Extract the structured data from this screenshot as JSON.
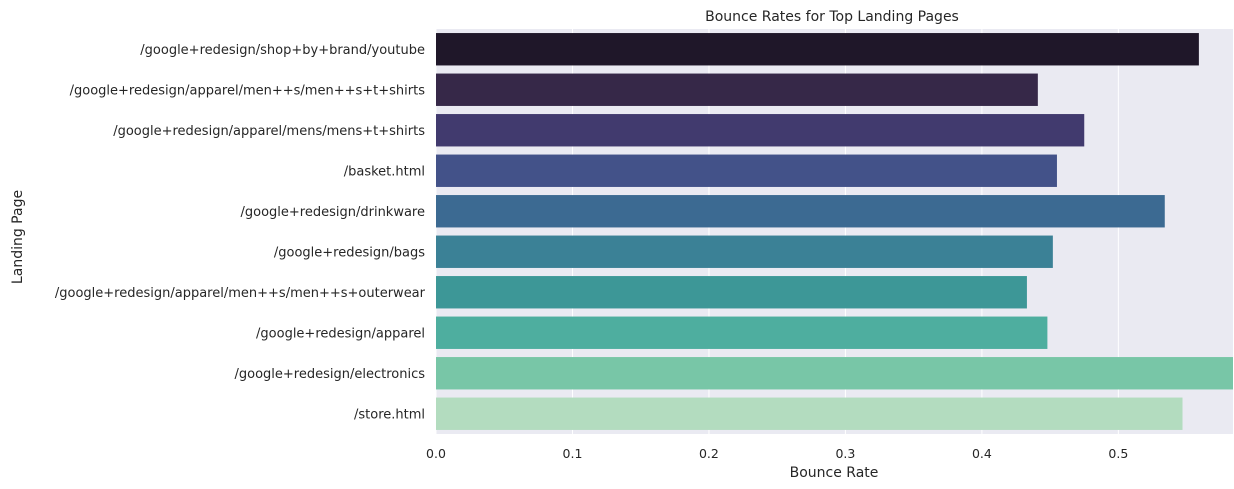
{
  "chart_data": {
    "type": "bar",
    "orientation": "horizontal",
    "title": "Bounce Rates for Top Landing Pages",
    "xlabel": "Bounce Rate",
    "ylabel": "Landing Page",
    "xlim": [
      0,
      0.584
    ],
    "xticks": [
      0.0,
      0.1,
      0.2,
      0.3,
      0.4,
      0.5
    ],
    "xtick_labels": [
      "0.0",
      "0.1",
      "0.2",
      "0.3",
      "0.4",
      "0.5"
    ],
    "grid": true,
    "categories": [
      "/google+redesign/shop+by+brand/youtube",
      "/google+redesign/apparel/men++s/men++s+t+shirts",
      "/google+redesign/apparel/mens/mens+t+shirts",
      "/basket.html",
      "/google+redesign/drinkware",
      "/google+redesign/bags",
      "/google+redesign/apparel/men++s/men++s+outerwear",
      "/google+redesign/apparel",
      "/google+redesign/electronics",
      "/store.html"
    ],
    "values": [
      0.559,
      0.441,
      0.475,
      0.455,
      0.534,
      0.452,
      0.433,
      0.448,
      0.584,
      0.547
    ],
    "colors": [
      "#1f1729",
      "#362848",
      "#413a6e",
      "#435289",
      "#3c6a92",
      "#3b8196",
      "#3d9797",
      "#4eae9f",
      "#78c6a7",
      "#b3dcbf"
    ],
    "background": "#eaeaf2",
    "grid_color": "#ffffff"
  }
}
